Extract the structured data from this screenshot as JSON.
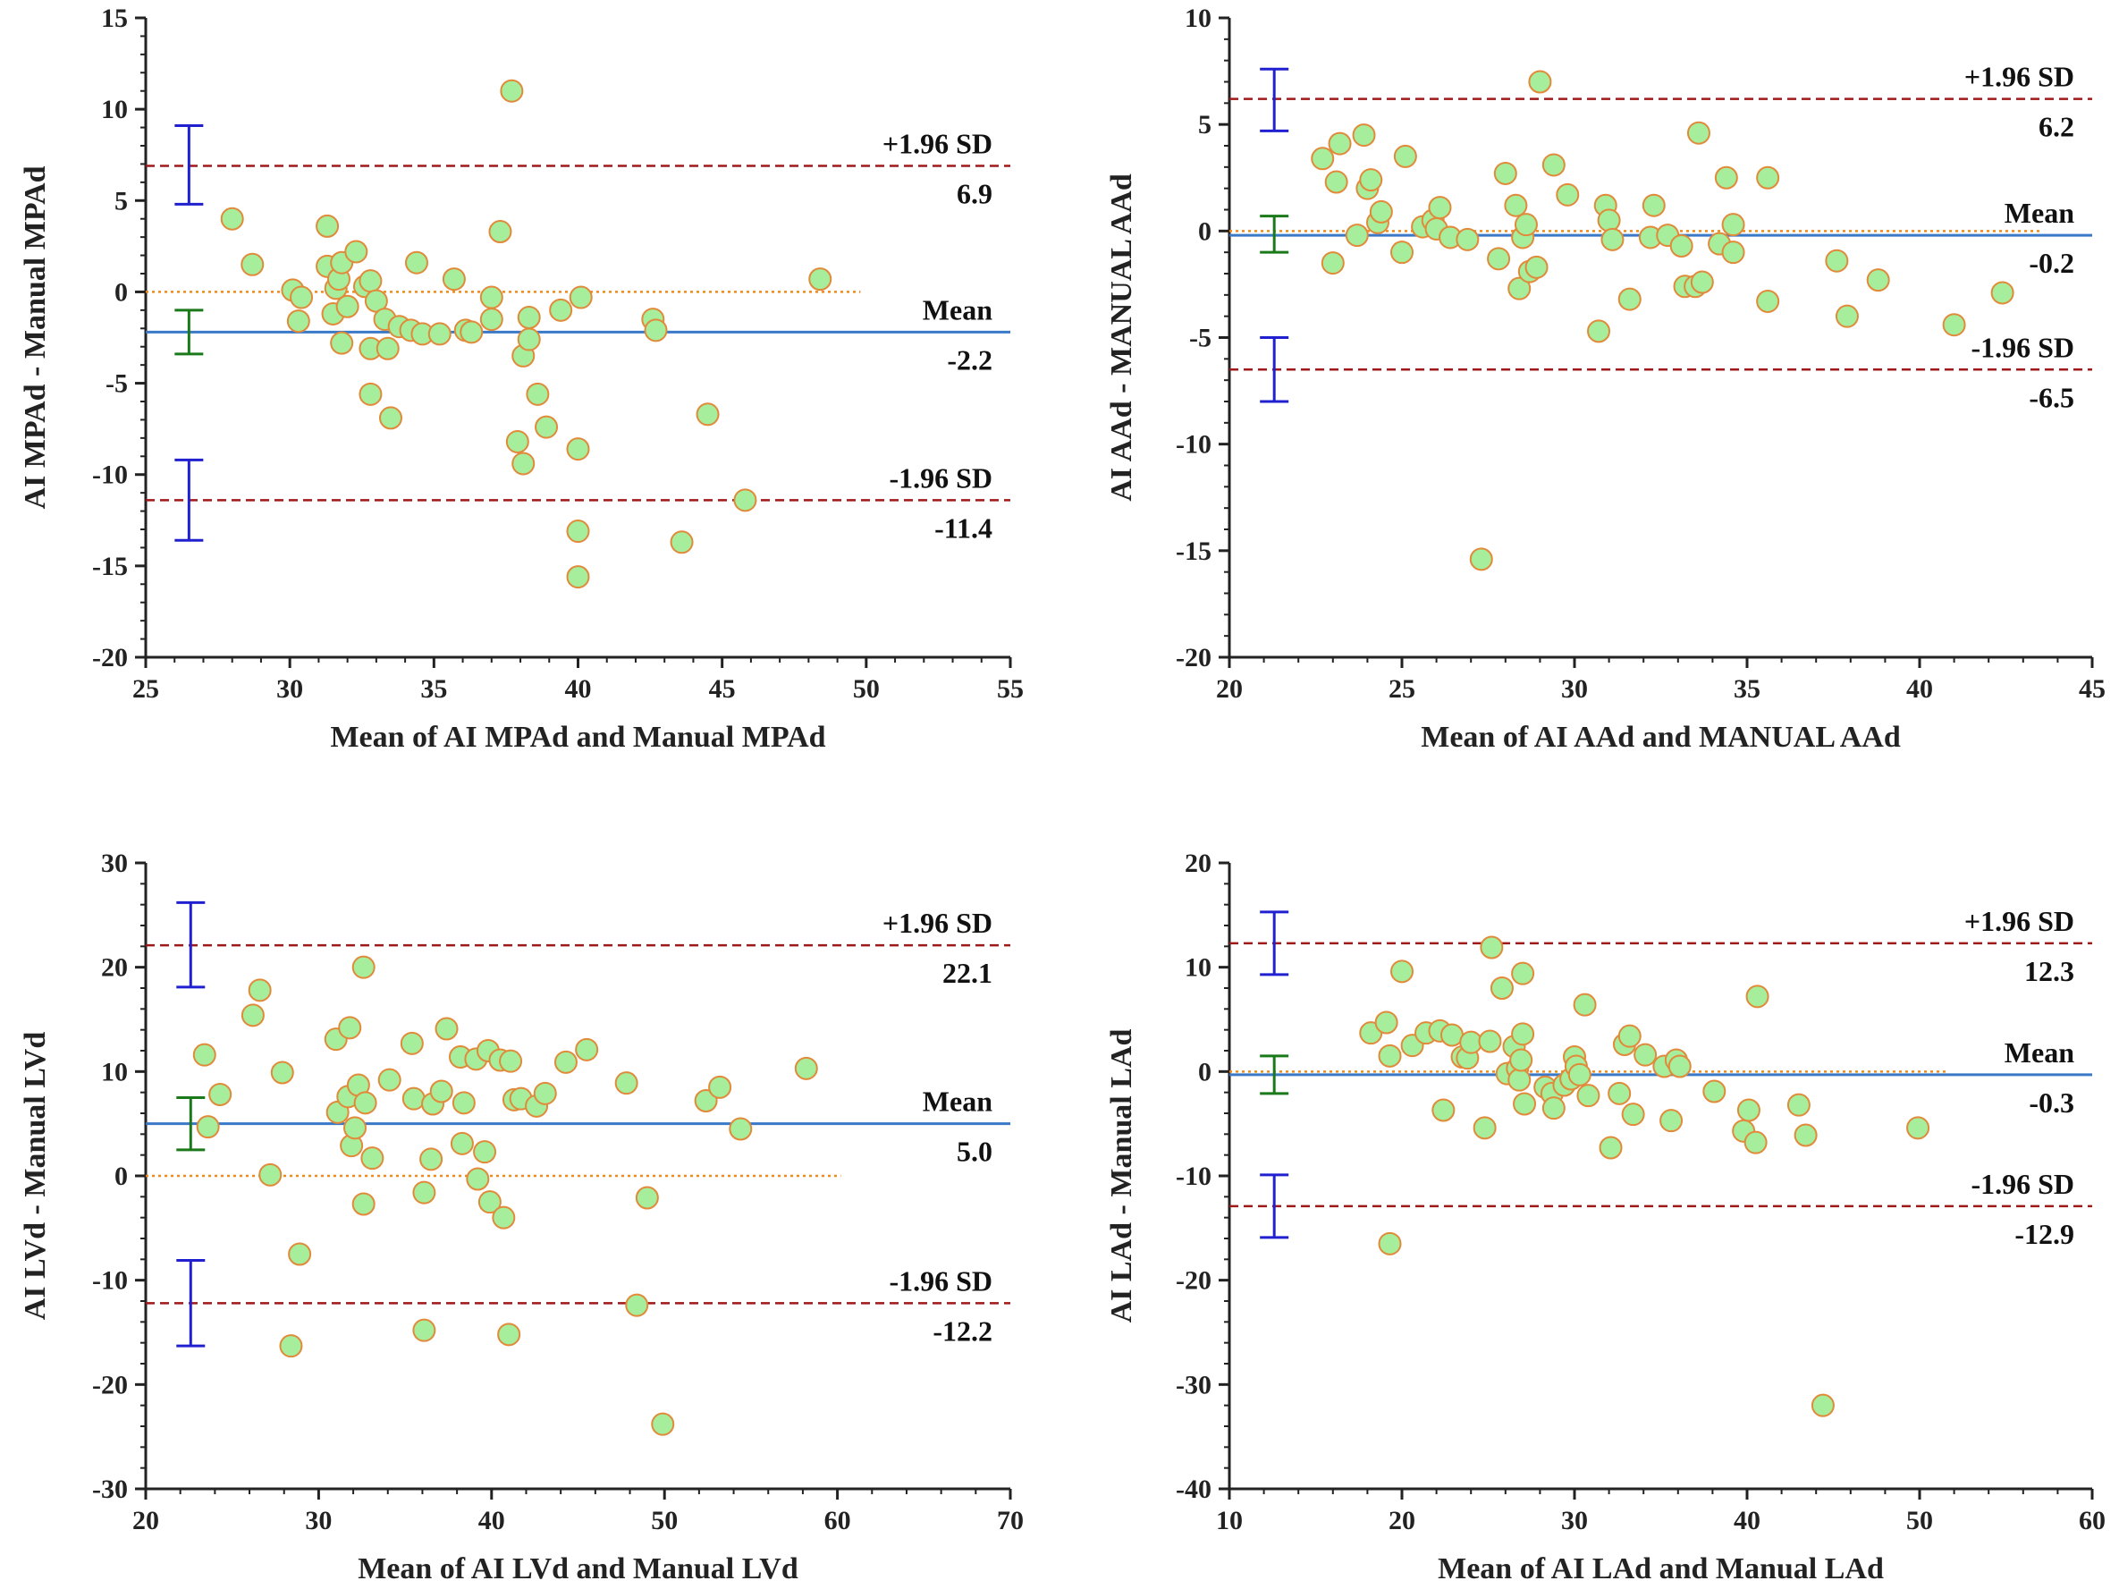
{
  "colors": {
    "point_fill": "#a6ee9c",
    "point_stroke": "#e08a3a",
    "mean_line": "#3a78c8",
    "sd_line": "#a01818",
    "zero_line": "#f08a1a",
    "ci_sd": "#2020d0",
    "ci_mean": "#1a7a1a",
    "axis": "#222222"
  },
  "chart_data": [
    {
      "type": "scatter",
      "title": "",
      "xlabel": "Mean of AI MPAd and Manual MPAd",
      "ylabel": "AI MPAd - Manual MPAd",
      "xlim": [
        25,
        55
      ],
      "ylim": [
        -20,
        15
      ],
      "xticks": [
        25,
        30,
        35,
        40,
        45,
        50,
        55
      ],
      "yticks": [
        15,
        10,
        5,
        0,
        -5,
        -10,
        -15,
        -20
      ],
      "mean": -2.2,
      "upper": 6.9,
      "lower": -11.4,
      "mean_label": "Mean",
      "mean_value": "-2.2",
      "upper_label": "+1.96 SD",
      "upper_value": "6.9",
      "lower_label": "-1.96 SD",
      "lower_value": "-11.4",
      "ci_x": 26.5,
      "ci_upper": [
        4.8,
        9.1
      ],
      "ci_mean": [
        -3.4,
        -1.0
      ],
      "ci_lower": [
        -13.6,
        -9.2
      ],
      "zero_xmax": 49.8,
      "points": [
        [
          28,
          4
        ],
        [
          28.7,
          1.5
        ],
        [
          30.1,
          0.1
        ],
        [
          30.3,
          -1.6
        ],
        [
          30.4,
          -0.3
        ],
        [
          31.3,
          3.6
        ],
        [
          31.3,
          1.4
        ],
        [
          31.5,
          -1.2
        ],
        [
          31.6,
          0.2
        ],
        [
          31.7,
          0.7
        ],
        [
          31.8,
          1.6
        ],
        [
          31.8,
          -2.8
        ],
        [
          32,
          -0.8
        ],
        [
          32.3,
          2.2
        ],
        [
          32.6,
          0.3
        ],
        [
          32.8,
          0.6
        ],
        [
          32.8,
          -3.1
        ],
        [
          33,
          -0.5
        ],
        [
          32.8,
          -5.6
        ],
        [
          33.3,
          -1.5
        ],
        [
          33.4,
          -3.1
        ],
        [
          33.5,
          -6.9
        ],
        [
          33.8,
          -1.9
        ],
        [
          34.4,
          1.6
        ],
        [
          34.2,
          -2.1
        ],
        [
          34.6,
          -2.3
        ],
        [
          35.2,
          -2.3
        ],
        [
          35.7,
          0.7
        ],
        [
          36.1,
          -2.1
        ],
        [
          36.3,
          -2.2
        ],
        [
          37,
          -0.3
        ],
        [
          37,
          -1.5
        ],
        [
          37.3,
          3.3
        ],
        [
          37.7,
          11
        ],
        [
          37.9,
          -8.2
        ],
        [
          38.1,
          -9.4
        ],
        [
          38.1,
          -3.5
        ],
        [
          38.3,
          -1.4
        ],
        [
          38.3,
          -2.6
        ],
        [
          38.6,
          -5.6
        ],
        [
          38.9,
          -7.4
        ],
        [
          39.4,
          -1
        ],
        [
          40.1,
          -0.3
        ],
        [
          40,
          -8.6
        ],
        [
          40,
          -13.1
        ],
        [
          40,
          -15.6
        ],
        [
          42.6,
          -1.5
        ],
        [
          42.7,
          -2.1
        ],
        [
          43.6,
          -13.7
        ],
        [
          44.5,
          -6.7
        ],
        [
          45.8,
          -11.4
        ],
        [
          48.4,
          0.7
        ]
      ]
    },
    {
      "type": "scatter",
      "title": "",
      "xlabel": "Mean of AI AAd and MANUAL AAd",
      "ylabel": "AI AAd - MANUAL AAd",
      "xlim": [
        20,
        45
      ],
      "ylim": [
        -20,
        10
      ],
      "xticks": [
        20,
        25,
        30,
        35,
        40,
        45
      ],
      "yticks": [
        10,
        5,
        0,
        -5,
        -10,
        -15,
        -20
      ],
      "mean": -0.2,
      "upper": 6.2,
      "lower": -6.5,
      "mean_label": "Mean",
      "mean_value": "-0.2",
      "upper_label": "+1.96 SD",
      "upper_value": "6.2",
      "lower_label": "-1.96 SD",
      "lower_value": "-6.5",
      "ci_x": 21.3,
      "ci_upper": [
        4.7,
        7.6
      ],
      "ci_mean": [
        -1.0,
        0.7
      ],
      "ci_lower": [
        -8.0,
        -5.0
      ],
      "zero_xmax": 43.5,
      "points": [
        [
          22.7,
          3.4
        ],
        [
          23.1,
          2.3
        ],
        [
          23.2,
          4.1
        ],
        [
          23,
          -1.5
        ],
        [
          23.7,
          -0.2
        ],
        [
          23.9,
          4.5
        ],
        [
          24,
          2
        ],
        [
          24.1,
          2.4
        ],
        [
          24.3,
          0.4
        ],
        [
          24.4,
          0.9
        ],
        [
          25,
          -1
        ],
        [
          25.1,
          3.5
        ],
        [
          25.6,
          0.2
        ],
        [
          25.9,
          0.5
        ],
        [
          26,
          0.1
        ],
        [
          26.1,
          1.1
        ],
        [
          26.4,
          -0.3
        ],
        [
          26.9,
          -0.4
        ],
        [
          27.3,
          -15.4
        ],
        [
          27.8,
          -1.3
        ],
        [
          28,
          2.7
        ],
        [
          28.3,
          1.2
        ],
        [
          28.4,
          -2.7
        ],
        [
          28.5,
          -0.3
        ],
        [
          28.6,
          0.3
        ],
        [
          28.7,
          -1.9
        ],
        [
          28.9,
          -1.7
        ],
        [
          29,
          7
        ],
        [
          29.4,
          3.1
        ],
        [
          29.8,
          1.7
        ],
        [
          30.7,
          -4.7
        ],
        [
          30.9,
          1.2
        ],
        [
          31,
          0.5
        ],
        [
          31.1,
          -0.4
        ],
        [
          31.6,
          -3.2
        ],
        [
          32.2,
          -0.3
        ],
        [
          32.3,
          1.2
        ],
        [
          32.7,
          -0.2
        ],
        [
          33.1,
          -0.7
        ],
        [
          33.2,
          -2.6
        ],
        [
          33.5,
          -2.6
        ],
        [
          33.7,
          -2.4
        ],
        [
          33.6,
          4.6
        ],
        [
          34.2,
          -0.6
        ],
        [
          34.4,
          2.5
        ],
        [
          34.6,
          0.3
        ],
        [
          34.6,
          -1
        ],
        [
          35.6,
          2.5
        ],
        [
          35.6,
          -3.3
        ],
        [
          37.6,
          -1.4
        ],
        [
          37.9,
          -4
        ],
        [
          38.8,
          -2.3
        ],
        [
          41,
          -4.4
        ],
        [
          42.4,
          -2.9
        ]
      ]
    },
    {
      "type": "scatter",
      "title": "",
      "xlabel": "Mean of AI LVd and Manual LVd",
      "ylabel": "AI LVd - Manual LVd",
      "xlim": [
        20,
        70
      ],
      "ylim": [
        -30,
        30
      ],
      "xticks": [
        20,
        30,
        40,
        50,
        60,
        70
      ],
      "yticks": [
        30,
        20,
        10,
        0,
        -10,
        -20,
        -30
      ],
      "mean": 5.0,
      "upper": 22.1,
      "lower": -12.2,
      "mean_label": "Mean",
      "mean_value": "5.0",
      "upper_label": "+1.96 SD",
      "upper_value": "22.1",
      "lower_label": "-1.96 SD",
      "lower_value": "-12.2",
      "ci_x": 22.6,
      "ci_upper": [
        18.1,
        26.2
      ],
      "ci_mean": [
        2.5,
        7.5
      ],
      "ci_lower": [
        -16.3,
        -8.1
      ],
      "zero_xmax": 60.2,
      "points": [
        [
          23.4,
          11.6
        ],
        [
          23.6,
          4.7
        ],
        [
          24.3,
          7.8
        ],
        [
          26.2,
          15.4
        ],
        [
          26.6,
          17.8
        ],
        [
          27.2,
          0.1
        ],
        [
          27.9,
          9.9
        ],
        [
          28.4,
          -16.3
        ],
        [
          28.9,
          -7.5
        ],
        [
          31,
          13.1
        ],
        [
          31.1,
          6.1
        ],
        [
          31.7,
          7.6
        ],
        [
          31.8,
          14.2
        ],
        [
          31.9,
          2.9
        ],
        [
          32.1,
          4.6
        ],
        [
          32.3,
          8.7
        ],
        [
          32.6,
          20
        ],
        [
          32.6,
          -2.7
        ],
        [
          32.7,
          7
        ],
        [
          33.1,
          1.7
        ],
        [
          34.1,
          9.2
        ],
        [
          35.4,
          12.7
        ],
        [
          35.5,
          7.4
        ],
        [
          36.1,
          -1.6
        ],
        [
          36.1,
          -14.8
        ],
        [
          36.5,
          1.6
        ],
        [
          36.6,
          6.9
        ],
        [
          37.1,
          8.1
        ],
        [
          37.4,
          14.1
        ],
        [
          38.2,
          11.4
        ],
        [
          38.3,
          3.1
        ],
        [
          38.4,
          7
        ],
        [
          39.1,
          11.2
        ],
        [
          39.2,
          -0.3
        ],
        [
          39.6,
          2.3
        ],
        [
          39.9,
          -2.5
        ],
        [
          39.8,
          12
        ],
        [
          40.5,
          11.1
        ],
        [
          40.7,
          -4
        ],
        [
          41,
          -15.2
        ],
        [
          41.1,
          11
        ],
        [
          41.3,
          7.3
        ],
        [
          41.7,
          7.4
        ],
        [
          42.6,
          6.7
        ],
        [
          43.1,
          7.9
        ],
        [
          44.3,
          10.9
        ],
        [
          45.5,
          12.1
        ],
        [
          47.8,
          8.9
        ],
        [
          48.4,
          -12.4
        ],
        [
          49,
          -2.1
        ],
        [
          49.9,
          -23.8
        ],
        [
          52.4,
          7.2
        ],
        [
          53.2,
          8.5
        ],
        [
          54.4,
          4.5
        ],
        [
          58.2,
          10.3
        ]
      ]
    },
    {
      "type": "scatter",
      "title": "",
      "xlabel": "Mean of AI LAd and Manual LAd",
      "ylabel": "AI LAd - Manual LAd",
      "xlim": [
        10,
        60
      ],
      "ylim": [
        -40,
        20
      ],
      "xticks": [
        10,
        20,
        30,
        40,
        50,
        60
      ],
      "yticks": [
        20,
        10,
        0,
        -10,
        -20,
        -30,
        -40
      ],
      "mean": -0.3,
      "upper": 12.3,
      "lower": -12.9,
      "mean_label": "Mean",
      "mean_value": "-0.3",
      "upper_label": "+1.96 SD",
      "upper_value": "12.3",
      "lower_label": "-1.96 SD",
      "lower_value": "-12.9",
      "ci_x": 12.6,
      "ci_upper": [
        9.3,
        15.3
      ],
      "ci_mean": [
        -2.1,
        1.5
      ],
      "ci_lower": [
        -15.9,
        -9.9
      ],
      "zero_xmax": 51.5,
      "points": [
        [
          18.2,
          3.7
        ],
        [
          19.1,
          4.7
        ],
        [
          19.3,
          1.5
        ],
        [
          19.3,
          -16.5
        ],
        [
          20,
          9.6
        ],
        [
          20.6,
          2.5
        ],
        [
          21.4,
          3.7
        ],
        [
          22.2,
          3.9
        ],
        [
          22.4,
          -3.7
        ],
        [
          22.9,
          3.5
        ],
        [
          23.5,
          1.4
        ],
        [
          23.8,
          1.3
        ],
        [
          24,
          2.8
        ],
        [
          24.8,
          -5.4
        ],
        [
          25.1,
          2.9
        ],
        [
          25.2,
          11.9
        ],
        [
          25.8,
          8
        ],
        [
          26.1,
          -0.2
        ],
        [
          26.5,
          2.4
        ],
        [
          26.7,
          0.3
        ],
        [
          26.8,
          -0.8
        ],
        [
          26.9,
          1.1
        ],
        [
          27,
          3.6
        ],
        [
          27,
          9.4
        ],
        [
          27.1,
          -3.1
        ],
        [
          28.3,
          -1.5
        ],
        [
          28.7,
          -2.1
        ],
        [
          28.8,
          -3.5
        ],
        [
          29.4,
          -1.3
        ],
        [
          29.8,
          -0.7
        ],
        [
          30,
          1.4
        ],
        [
          30.1,
          0.5
        ],
        [
          30.3,
          -0.3
        ],
        [
          30.6,
          6.4
        ],
        [
          30.8,
          -2.3
        ],
        [
          32.1,
          -7.3
        ],
        [
          32.6,
          -2.1
        ],
        [
          32.9,
          2.6
        ],
        [
          33.2,
          3.4
        ],
        [
          33.4,
          -4.1
        ],
        [
          34.1,
          1.6
        ],
        [
          35.2,
          0.5
        ],
        [
          35.6,
          -4.7
        ],
        [
          35.9,
          1.1
        ],
        [
          36.1,
          0.5
        ],
        [
          38.1,
          -1.9
        ],
        [
          39.8,
          -5.7
        ],
        [
          40.1,
          -3.7
        ],
        [
          40.5,
          -6.8
        ],
        [
          40.6,
          7.2
        ],
        [
          43,
          -3.2
        ],
        [
          43.4,
          -6.1
        ],
        [
          44.4,
          -32
        ],
        [
          49.9,
          -5.4
        ]
      ]
    }
  ]
}
